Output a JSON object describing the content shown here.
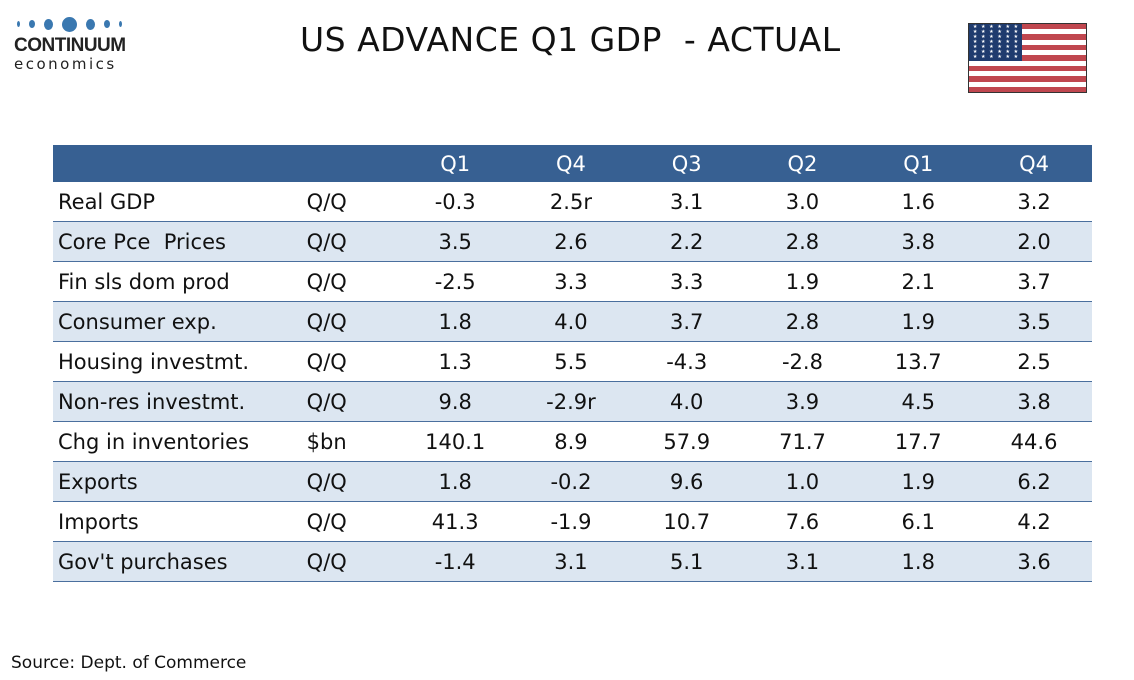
{
  "logo": {
    "line1": "CONTINUUM",
    "line2": "economics",
    "dot_color": "#3a78b0"
  },
  "header": {
    "title": "US ADVANCE Q1 GDP  - ACTUAL",
    "flag_icon": "us-flag-icon"
  },
  "table": {
    "header_color": "#376092",
    "alt_row_color": "#dce6f1",
    "columns": [
      "Q1",
      "Q4",
      "Q3",
      "Q2",
      "Q1",
      "Q4"
    ],
    "rows": [
      {
        "label": "Real GDP",
        "unit": "Q/Q",
        "values": [
          "-0.3",
          "2.5r",
          "3.1",
          "3.0",
          "1.6",
          "3.2"
        ]
      },
      {
        "label": "Core Pce  Prices",
        "unit": "Q/Q",
        "values": [
          "3.5",
          "2.6",
          "2.2",
          "2.8",
          "3.8",
          "2.0"
        ]
      },
      {
        "label": "Fin sls dom prod",
        "unit": "Q/Q",
        "values": [
          "-2.5",
          "3.3",
          "3.3",
          "1.9",
          "2.1",
          "3.7"
        ]
      },
      {
        "label": "Consumer exp.",
        "unit": "Q/Q",
        "values": [
          "1.8",
          "4.0",
          "3.7",
          "2.8",
          "1.9",
          "3.5"
        ]
      },
      {
        "label": "Housing investmt.",
        "unit": "Q/Q",
        "values": [
          "1.3",
          "5.5",
          "-4.3",
          "-2.8",
          "13.7",
          "2.5"
        ]
      },
      {
        "label": "Non-res investmt.",
        "unit": "Q/Q",
        "values": [
          "9.8",
          "-2.9r",
          "4.0",
          "3.9",
          "4.5",
          "3.8"
        ]
      },
      {
        "label": "Chg in inventories",
        "unit": "$bn",
        "values": [
          "140.1",
          "8.9",
          "57.9",
          "71.7",
          "17.7",
          "44.6"
        ]
      },
      {
        "label": "Exports",
        "unit": "Q/Q",
        "values": [
          "1.8",
          "-0.2",
          "9.6",
          "1.0",
          "1.9",
          "6.2"
        ]
      },
      {
        "label": "Imports",
        "unit": "Q/Q",
        "values": [
          "41.3",
          "-1.9",
          "10.7",
          "7.6",
          "6.1",
          "4.2"
        ]
      },
      {
        "label": "Gov't purchases",
        "unit": "Q/Q",
        "values": [
          "-1.4",
          "3.1",
          "5.1",
          "3.1",
          "1.8",
          "3.6"
        ]
      }
    ]
  },
  "footer": {
    "source": "Source: Dept. of Commerce"
  }
}
